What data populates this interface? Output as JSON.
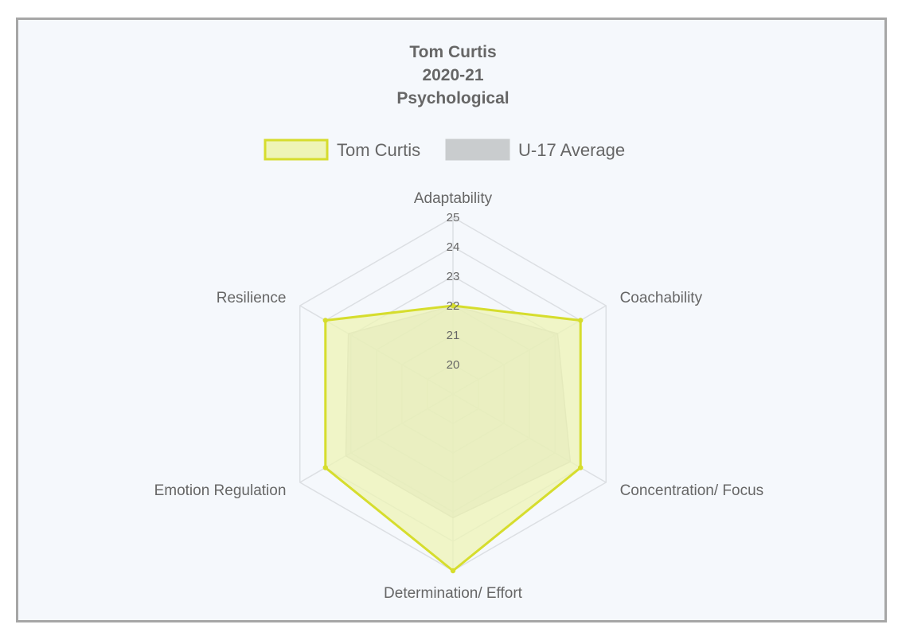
{
  "chart_data": {
    "type": "radar",
    "title": [
      "Tom Curtis",
      "2020-21",
      "Psychological"
    ],
    "categories": [
      "Adaptability",
      "Coachability",
      "Concentration/ Focus",
      "Determination/ Effort",
      "Emotion Regulation",
      "Resilience"
    ],
    "r_ticks": [
      "20",
      "21",
      "22",
      "23",
      "24",
      "25"
    ],
    "r_range": [
      19,
      25
    ],
    "grid": true,
    "legend_position": "top",
    "series": [
      {
        "name": "Tom Curtis",
        "values": [
          22,
          24,
          24,
          25,
          24,
          24
        ],
        "fill": "#eef4b6",
        "stroke": "#d6dd2d"
      },
      {
        "name": "U-17 Average",
        "values": [
          22,
          23.1,
          23.6,
          23.2,
          23.2,
          23.1
        ],
        "fill": "#c9ccce",
        "stroke": "#c9ccce"
      }
    ]
  }
}
